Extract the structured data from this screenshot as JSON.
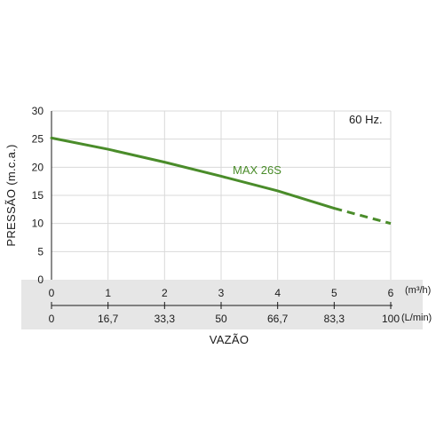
{
  "chart_data": {
    "type": "line",
    "ylabel": "PRESSÃO (m.c.a.)",
    "xlabel": "VAZÃO",
    "annotation": "60 Hz.",
    "ylim": [
      0,
      30
    ],
    "xlim": [
      0,
      6
    ],
    "yticks": [
      "0",
      "5",
      "10",
      "15",
      "20",
      "25",
      "30"
    ],
    "xticks_primary": {
      "unit": "(m³/h)",
      "values": [
        0,
        1,
        2,
        3,
        4,
        5,
        6
      ],
      "labels": [
        "0",
        "1",
        "2",
        "3",
        "4",
        "5",
        "6"
      ]
    },
    "xticks_secondary": {
      "unit": "(L/min)",
      "labels": [
        "0",
        "16,7",
        "33,3",
        "50",
        "66,7",
        "83,3",
        "100"
      ]
    },
    "grid": true,
    "series": [
      {
        "name": "MAX 26S",
        "color": "#4a8c2a",
        "x": [
          0,
          1,
          2,
          3,
          4,
          5
        ],
        "y": [
          25.2,
          23.2,
          20.9,
          18.4,
          15.8,
          12.7
        ],
        "extension": {
          "x": [
            5,
            6
          ],
          "y": [
            12.7,
            10.0
          ],
          "style": "dashed"
        }
      }
    ]
  }
}
